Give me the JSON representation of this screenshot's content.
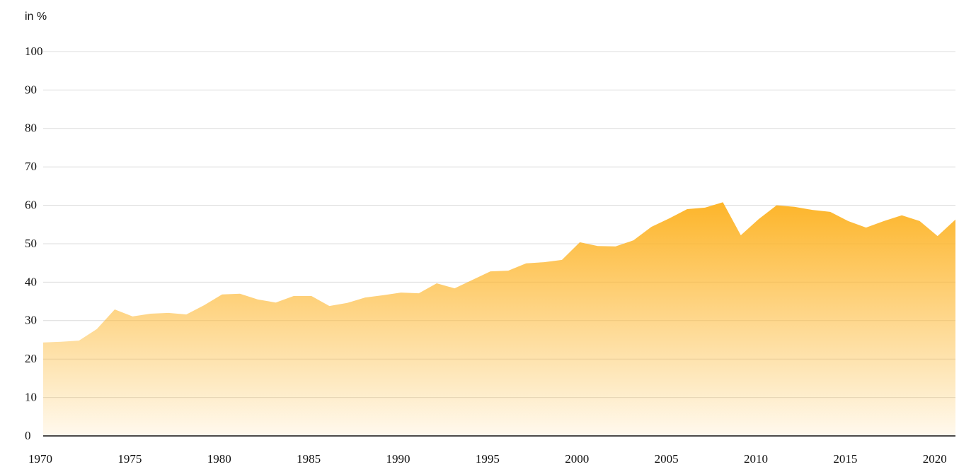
{
  "chart_data": {
    "type": "area",
    "y_label": "in %",
    "x": [
      1970,
      1971,
      1972,
      1973,
      1974,
      1975,
      1976,
      1977,
      1978,
      1979,
      1980,
      1981,
      1982,
      1983,
      1984,
      1985,
      1986,
      1987,
      1988,
      1989,
      1990,
      1991,
      1992,
      1993,
      1994,
      1995,
      1996,
      1997,
      1998,
      1999,
      2000,
      2001,
      2002,
      2003,
      2004,
      2005,
      2006,
      2007,
      2008,
      2009,
      2010,
      2011,
      2012,
      2013,
      2014,
      2015,
      2016,
      2017,
      2018,
      2019,
      2020,
      2021
    ],
    "values": [
      24.3,
      24.5,
      24.8,
      27.8,
      32.9,
      31.1,
      31.8,
      32.0,
      31.6,
      34.0,
      36.8,
      37.0,
      35.5,
      34.7,
      36.4,
      36.4,
      33.8,
      34.6,
      36.0,
      36.6,
      37.3,
      37.1,
      39.7,
      38.4,
      40.6,
      42.8,
      43.0,
      44.9,
      45.2,
      45.8,
      50.4,
      49.4,
      49.3,
      50.9,
      54.4,
      56.6,
      59.0,
      59.4,
      60.8,
      52.2,
      56.4,
      60.0,
      59.6,
      58.8,
      58.3,
      55.9,
      54.2,
      55.9,
      57.4,
      55.9,
      52.0,
      56.3
    ],
    "color": "#fdb52a",
    "xlim": [
      1970,
      2021
    ],
    "xticks": [
      1970,
      1975,
      1980,
      1985,
      1990,
      1995,
      2000,
      2005,
      2010,
      2015,
      2020
    ],
    "ylim": [
      0,
      100
    ],
    "yticks": [
      0,
      10,
      20,
      30,
      40,
      50,
      60,
      70,
      80,
      90,
      100
    ],
    "grid": true
  }
}
